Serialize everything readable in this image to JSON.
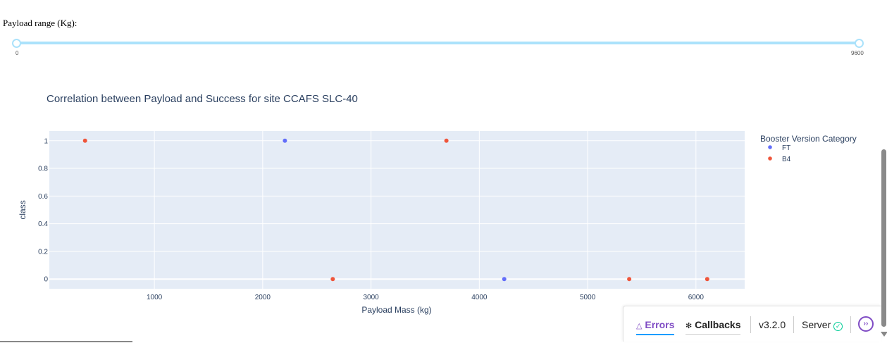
{
  "slider": {
    "label": "Payload range (Kg):",
    "min_label": "0",
    "max_label": "9600",
    "min": 0,
    "max": 9600,
    "value": [
      0,
      9600
    ],
    "track_color": "#abe2fb"
  },
  "chart_data": {
    "type": "scatter",
    "title": "Correlation between Payload and Success for site CCAFS SLC-40",
    "xlabel": "Payload Mass (kg)",
    "ylabel": "class",
    "xlim": [
      30,
      6450
    ],
    "ylim": [
      -0.07,
      1.07
    ],
    "xticks": [
      1000,
      2000,
      3000,
      4000,
      5000,
      6000
    ],
    "yticks": [
      0,
      0.2,
      0.4,
      0.6,
      0.8,
      1
    ],
    "grid": true,
    "plot_bg": "#e5ecf6",
    "legend_title": "Booster Version Category",
    "legend_position": "right",
    "series": [
      {
        "name": "FT",
        "color": "#636efa",
        "points": [
          {
            "x": 2205,
            "y": 1
          },
          {
            "x": 4230,
            "y": 0
          }
        ]
      },
      {
        "name": "B4",
        "color": "#ef553b",
        "points": [
          {
            "x": 360,
            "y": 1
          },
          {
            "x": 2647,
            "y": 0
          },
          {
            "x": 3696,
            "y": 1
          },
          {
            "x": 5384,
            "y": 0
          },
          {
            "x": 6104,
            "y": 0
          }
        ]
      }
    ]
  },
  "devtools": {
    "errors_label": "Errors",
    "callbacks_label": "Callbacks",
    "version": "v3.2.0",
    "server_label": "Server",
    "accent_color": "#7f4bc4"
  }
}
